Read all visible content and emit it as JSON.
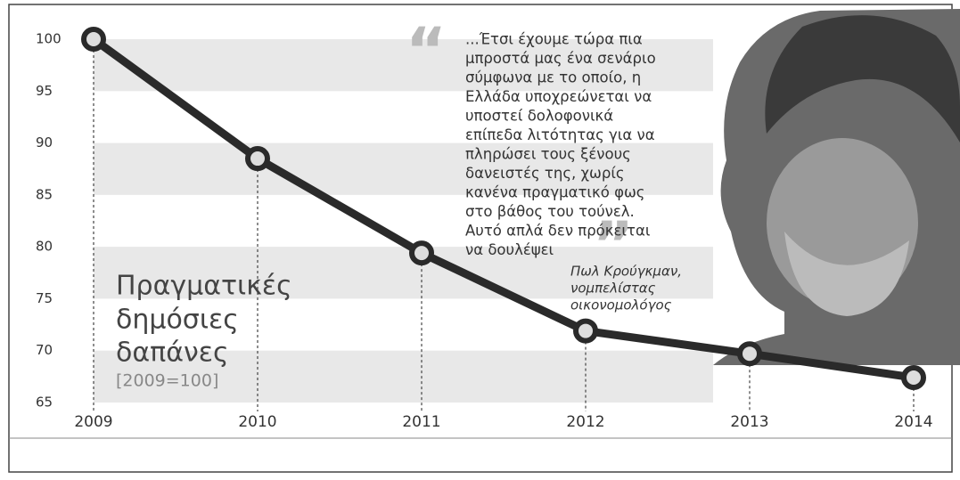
{
  "chart_data": {
    "type": "line",
    "title": [
      "Πραγματικές",
      "δημόσιες",
      "δαπάνες"
    ],
    "subtitle": "[2009=100]",
    "categories": [
      "2009",
      "2010",
      "2011",
      "2012",
      "2013",
      "2014"
    ],
    "series": [
      {
        "color": "#2a2a2a",
        "values": [
          100,
          88.5,
          79.4,
          71.9,
          69.7,
          67.4
        ]
      }
    ],
    "ylim": [
      65,
      100
    ],
    "yticks": [
      65,
      70,
      75,
      80,
      85,
      90,
      95,
      100
    ],
    "quote_open": "“",
    "quote_close": "”",
    "quote": [
      "...Έτσι έχουμε τώρα πια",
      "μπροστά μας ένα σενάριο",
      "σύμφωνα με το οποίο, η",
      "Ελλάδα υποχρεώνεται να",
      "υποστεί δολοφονικά",
      "επίπεδα λιτότητας για να",
      "πληρώσει τους ξένους",
      "δανειστές της, χωρίς",
      "κανένα πραγματικό φως",
      "στο βάθος του τούνελ.",
      "Αυτό απλά δεν πρόκειται",
      "να δουλέψει"
    ],
    "attribution": [
      "Πωλ Κρούγκμαν,",
      "νομπελίστας",
      "οικονομολόγος"
    ]
  }
}
